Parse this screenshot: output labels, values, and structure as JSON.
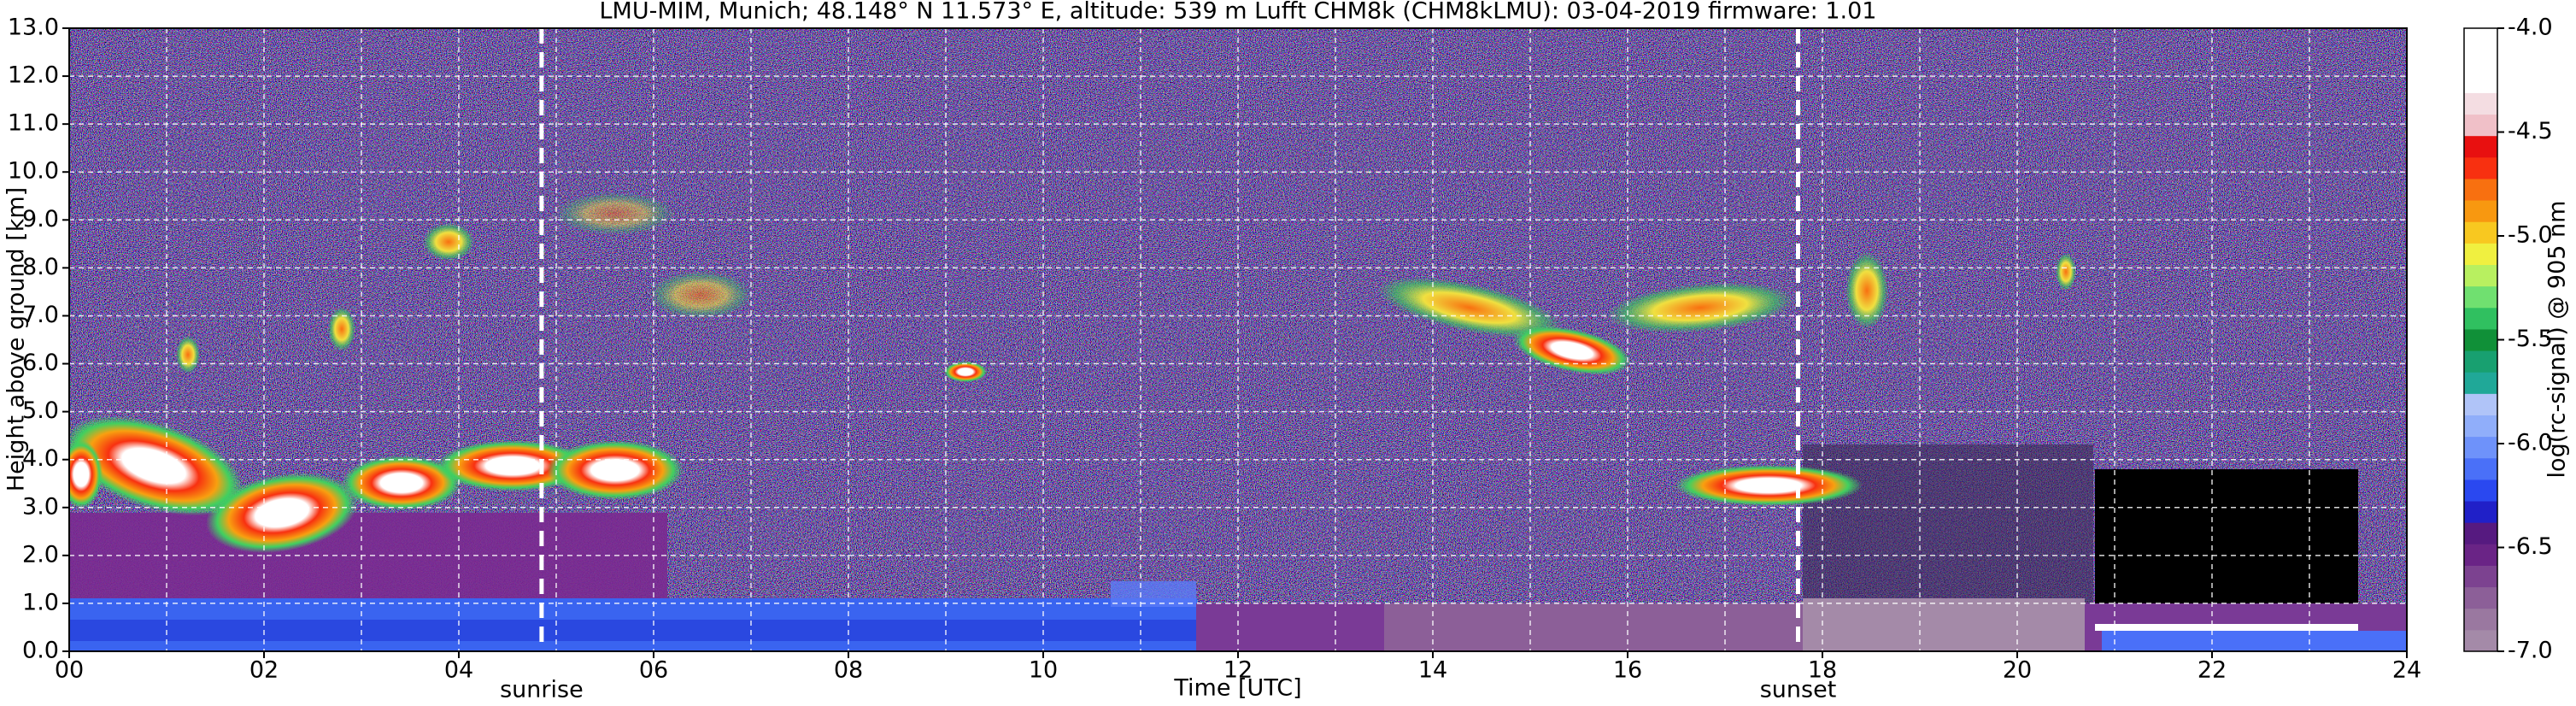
{
  "chart_data": {
    "type": "heatmap",
    "title": "LMU-MIM, Munich; 48.148° N 11.573° E, altitude: 539 m    Lufft CHM8k (CHM8kLMU): 03-04-2019    firmware: 1.01",
    "xlabel": "Time [UTC]",
    "ylabel": "Height above ground [km]",
    "xlim": [
      0,
      24
    ],
    "xticks": [
      {
        "value": 0,
        "label": "00"
      },
      {
        "value": 2,
        "label": "02"
      },
      {
        "value": 4,
        "label": "04"
      },
      {
        "value": 6,
        "label": "06"
      },
      {
        "value": 8,
        "label": "08"
      },
      {
        "value": 10,
        "label": "10"
      },
      {
        "value": 12,
        "label": "12"
      },
      {
        "value": 14,
        "label": "14"
      },
      {
        "value": 16,
        "label": "16"
      },
      {
        "value": 18,
        "label": "18"
      },
      {
        "value": 20,
        "label": "20"
      },
      {
        "value": 22,
        "label": "22"
      },
      {
        "value": 24,
        "label": "24"
      }
    ],
    "x_minor_ticks": [
      1,
      3,
      5,
      7,
      9,
      11,
      13,
      15,
      17,
      19,
      21,
      23
    ],
    "ylim": [
      0,
      13
    ],
    "yticks": [
      {
        "value": 0,
        "label": "0.0"
      },
      {
        "value": 1,
        "label": "1.0"
      },
      {
        "value": 2,
        "label": "2.0"
      },
      {
        "value": 3,
        "label": "3.0"
      },
      {
        "value": 4,
        "label": "4.0"
      },
      {
        "value": 5,
        "label": "5.0"
      },
      {
        "value": 6,
        "label": "6.0"
      },
      {
        "value": 7,
        "label": "7.0"
      },
      {
        "value": 8,
        "label": "8.0"
      },
      {
        "value": 9,
        "label": "9.0"
      },
      {
        "value": 10,
        "label": "10.0"
      },
      {
        "value": 11,
        "label": "11.0"
      },
      {
        "value": 12,
        "label": "12.0"
      },
      {
        "value": 13,
        "label": "13.0"
      }
    ],
    "grid": true,
    "vlines": [
      {
        "x": 4.85,
        "label": "sunrise"
      },
      {
        "x": 17.75,
        "label": "sunset"
      }
    ],
    "colorbar": {
      "label": "log(rc-signal) @ 905 nm",
      "lim": [
        -7.0,
        -4.0
      ],
      "ticks": [
        {
          "value": -7.0,
          "label": "-7.0"
        },
        {
          "value": -6.5,
          "label": "-6.5"
        },
        {
          "value": -6.0,
          "label": "-6.0"
        },
        {
          "value": -5.5,
          "label": "-5.5"
        },
        {
          "value": -5.0,
          "label": "-5.0"
        },
        {
          "value": -4.5,
          "label": "-4.5"
        },
        {
          "value": -4.0,
          "label": "-4.0"
        }
      ],
      "colors": [
        "#a48aa8",
        "#9a78a0",
        "#8c5f98",
        "#7c4290",
        "#6a2486",
        "#561a80",
        "#2020c8",
        "#2a48f0",
        "#4a70f8",
        "#6e92fa",
        "#90aefa",
        "#b0c4f8",
        "#20a898",
        "#18a070",
        "#109038",
        "#30c060",
        "#70e070",
        "#b8f060",
        "#f0f040",
        "#f8c820",
        "#f89810",
        "#f87010",
        "#f83010",
        "#e81010",
        "#f0c0c8",
        "#f4dde2",
        "#ffffff",
        "#ffffff",
        "#ffffff"
      ]
    }
  }
}
